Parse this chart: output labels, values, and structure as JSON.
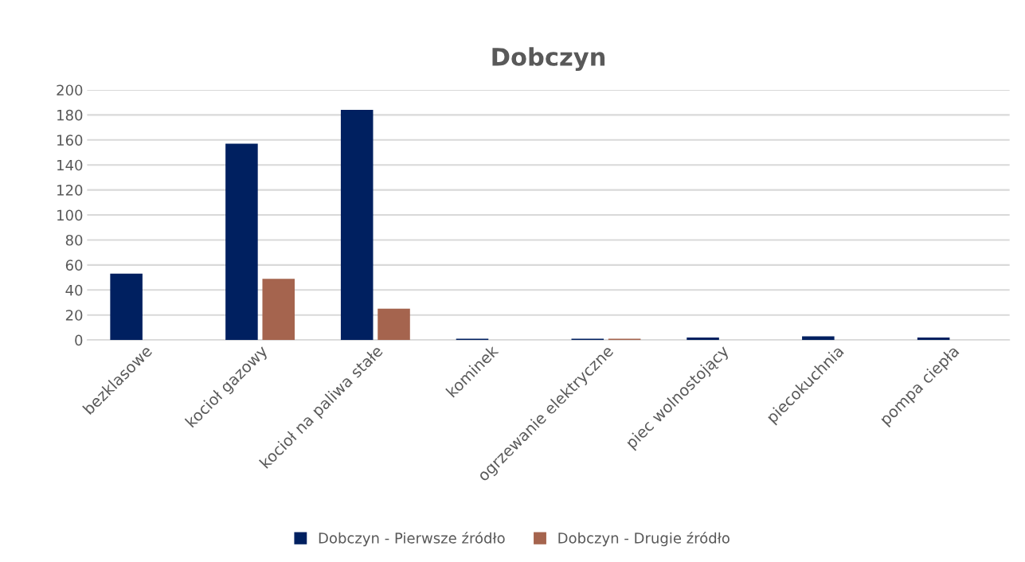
{
  "chart_data": {
    "type": "bar",
    "title": "Dobczyn",
    "categories": [
      "bezklasowe",
      "kocioł gazowy",
      "kocioł na paliwa stałe",
      "kominek",
      "ogrzewanie elektryczne",
      "piec wolnostojący",
      "piecokuchnia",
      "pompa ciepła"
    ],
    "series": [
      {
        "name": "Dobczyn - Pierwsze źródło",
        "color": "#002060",
        "values": [
          53,
          157,
          184,
          1,
          1,
          2,
          3,
          2
        ]
      },
      {
        "name": "Dobczyn - Drugie źródło",
        "color": "#a5644e",
        "values": [
          0,
          49,
          25,
          0,
          1,
          0,
          0,
          0
        ]
      }
    ],
    "ylim": [
      0,
      200
    ],
    "yticks": [
      0,
      20,
      40,
      60,
      80,
      100,
      120,
      140,
      160,
      180,
      200
    ],
    "grid": "y",
    "legend": "bottom"
  }
}
